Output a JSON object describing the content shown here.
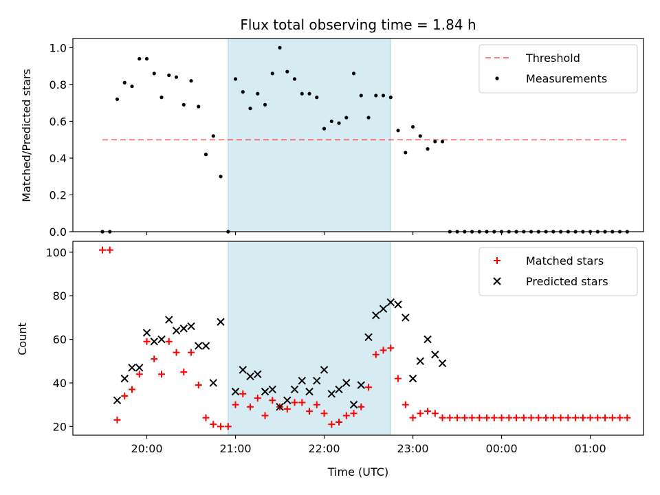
{
  "chart_data": [
    {
      "type": "scatter",
      "title": "Flux total observing time = 1.84 h",
      "xlabel": "",
      "ylabel": "Matched/Predicted stars",
      "ylim": [
        0,
        1.05
      ],
      "yticks": [
        "0.0",
        "0.2",
        "0.4",
        "0.6",
        "0.8",
        "1.0"
      ],
      "xticks": [
        "20:00",
        "21:00",
        "22:00",
        "23:00",
        "00:00",
        "01:00"
      ],
      "highlight_span": {
        "start": "20:55",
        "end": "22:45",
        "color": "#add8e6"
      },
      "threshold": {
        "name": "Threshold",
        "value": 0.5,
        "x_start": "19:30",
        "x_end": "01:25",
        "color": "#ff0000"
      },
      "legend": {
        "placement": "upper right",
        "entries": [
          "Threshold",
          "Measurements"
        ]
      },
      "series": [
        {
          "name": "Measurements",
          "marker": "dot",
          "color": "#000000",
          "points": [
            [
              "19:30",
              0.0
            ],
            [
              "19:35",
              0.0
            ],
            [
              "19:40",
              0.72
            ],
            [
              "19:45",
              0.81
            ],
            [
              "19:50",
              0.79
            ],
            [
              "19:55",
              0.94
            ],
            [
              "20:00",
              0.94
            ],
            [
              "20:05",
              0.86
            ],
            [
              "20:10",
              0.73
            ],
            [
              "20:15",
              0.85
            ],
            [
              "20:20",
              0.84
            ],
            [
              "20:25",
              0.69
            ],
            [
              "20:30",
              0.82
            ],
            [
              "20:35",
              0.68
            ],
            [
              "20:40",
              0.42
            ],
            [
              "20:45",
              0.52
            ],
            [
              "20:50",
              0.3
            ],
            [
              "20:55",
              0.0
            ],
            [
              "21:00",
              0.83
            ],
            [
              "21:05",
              0.76
            ],
            [
              "21:10",
              0.67
            ],
            [
              "21:15",
              0.75
            ],
            [
              "21:20",
              0.69
            ],
            [
              "21:25",
              0.86
            ],
            [
              "21:30",
              1.0
            ],
            [
              "21:35",
              0.87
            ],
            [
              "21:40",
              0.83
            ],
            [
              "21:45",
              0.75
            ],
            [
              "21:50",
              0.75
            ],
            [
              "21:55",
              0.73
            ],
            [
              "22:00",
              0.56
            ],
            [
              "22:05",
              0.6
            ],
            [
              "22:10",
              0.59
            ],
            [
              "22:15",
              0.62
            ],
            [
              "22:20",
              0.86
            ],
            [
              "22:25",
              0.74
            ],
            [
              "22:30",
              0.62
            ],
            [
              "22:35",
              0.74
            ],
            [
              "22:40",
              0.74
            ],
            [
              "22:45",
              0.73
            ],
            [
              "22:50",
              0.55
            ],
            [
              "22:55",
              0.43
            ],
            [
              "23:00",
              0.57
            ],
            [
              "23:05",
              0.52
            ],
            [
              "23:10",
              0.45
            ],
            [
              "23:15",
              0.49
            ],
            [
              "23:20",
              0.49
            ],
            [
              "23:25",
              0.0
            ],
            [
              "23:30",
              0.0
            ],
            [
              "23:35",
              0.0
            ],
            [
              "23:40",
              0.0
            ],
            [
              "23:45",
              0.0
            ],
            [
              "23:50",
              0.0
            ],
            [
              "23:55",
              0.0
            ],
            [
              "00:00",
              0.0
            ],
            [
              "00:05",
              0.0
            ],
            [
              "00:10",
              0.0
            ],
            [
              "00:15",
              0.0
            ],
            [
              "00:20",
              0.0
            ],
            [
              "00:25",
              0.0
            ],
            [
              "00:30",
              0.0
            ],
            [
              "00:35",
              0.0
            ],
            [
              "00:40",
              0.0
            ],
            [
              "00:45",
              0.0
            ],
            [
              "00:50",
              0.0
            ],
            [
              "00:55",
              0.0
            ],
            [
              "01:00",
              0.0
            ],
            [
              "01:05",
              0.0
            ],
            [
              "01:10",
              0.0
            ],
            [
              "01:15",
              0.0
            ],
            [
              "01:20",
              0.0
            ],
            [
              "01:25",
              0.0
            ]
          ]
        }
      ]
    },
    {
      "type": "scatter",
      "title": "",
      "xlabel": "Time (UTC)",
      "ylabel": "Count",
      "ylim": [
        16,
        105
      ],
      "yticks": [
        "20",
        "40",
        "60",
        "80",
        "100"
      ],
      "xticks": [
        "20:00",
        "21:00",
        "22:00",
        "23:00",
        "00:00",
        "01:00"
      ],
      "highlight_span": {
        "start": "20:55",
        "end": "22:45",
        "color": "#add8e6"
      },
      "legend": {
        "placement": "upper right",
        "entries": [
          "Matched stars",
          "Predicted stars"
        ]
      },
      "series": [
        {
          "name": "Matched stars",
          "marker": "plus",
          "color": "#ff0000",
          "points": [
            [
              "19:30",
              101
            ],
            [
              "19:35",
              101
            ],
            [
              "19:40",
              23
            ],
            [
              "19:45",
              34
            ],
            [
              "19:50",
              37
            ],
            [
              "19:55",
              44
            ],
            [
              "20:00",
              59
            ],
            [
              "20:05",
              51
            ],
            [
              "20:10",
              44
            ],
            [
              "20:15",
              59
            ],
            [
              "20:20",
              54
            ],
            [
              "20:25",
              45
            ],
            [
              "20:30",
              54
            ],
            [
              "20:35",
              39
            ],
            [
              "20:40",
              24
            ],
            [
              "20:45",
              21
            ],
            [
              "20:50",
              20
            ],
            [
              "20:55",
              20
            ],
            [
              "21:00",
              30
            ],
            [
              "21:05",
              35
            ],
            [
              "21:10",
              29
            ],
            [
              "21:15",
              33
            ],
            [
              "21:20",
              25
            ],
            [
              "21:25",
              32
            ],
            [
              "21:30",
              29
            ],
            [
              "21:35",
              28
            ],
            [
              "21:40",
              31
            ],
            [
              "21:45",
              31
            ],
            [
              "21:50",
              27
            ],
            [
              "21:55",
              30
            ],
            [
              "22:00",
              26
            ],
            [
              "22:05",
              21
            ],
            [
              "22:10",
              22
            ],
            [
              "22:15",
              25
            ],
            [
              "22:20",
              26
            ],
            [
              "22:25",
              29
            ],
            [
              "22:30",
              38
            ],
            [
              "22:35",
              53
            ],
            [
              "22:40",
              55
            ],
            [
              "22:45",
              56
            ],
            [
              "22:50",
              42
            ],
            [
              "22:55",
              30
            ],
            [
              "23:00",
              24
            ],
            [
              "23:05",
              26
            ],
            [
              "23:10",
              27
            ],
            [
              "23:15",
              26
            ],
            [
              "23:20",
              24
            ],
            [
              "23:25",
              24
            ],
            [
              "23:30",
              24
            ],
            [
              "23:35",
              24
            ],
            [
              "23:40",
              24
            ],
            [
              "23:45",
              24
            ],
            [
              "23:50",
              24
            ],
            [
              "23:55",
              24
            ],
            [
              "00:00",
              24
            ],
            [
              "00:05",
              24
            ],
            [
              "00:10",
              24
            ],
            [
              "00:15",
              24
            ],
            [
              "00:20",
              24
            ],
            [
              "00:25",
              24
            ],
            [
              "00:30",
              24
            ],
            [
              "00:35",
              24
            ],
            [
              "00:40",
              24
            ],
            [
              "00:45",
              24
            ],
            [
              "00:50",
              24
            ],
            [
              "00:55",
              24
            ],
            [
              "01:00",
              24
            ],
            [
              "01:05",
              24
            ],
            [
              "01:10",
              24
            ],
            [
              "01:15",
              24
            ],
            [
              "01:20",
              24
            ],
            [
              "01:25",
              24
            ]
          ]
        },
        {
          "name": "Predicted stars",
          "marker": "x",
          "color": "#000000",
          "points": [
            [
              "19:40",
              32
            ],
            [
              "19:45",
              42
            ],
            [
              "19:50",
              47
            ],
            [
              "19:55",
              47
            ],
            [
              "20:00",
              63
            ],
            [
              "20:05",
              59
            ],
            [
              "20:10",
              60
            ],
            [
              "20:15",
              69
            ],
            [
              "20:20",
              64
            ],
            [
              "20:25",
              65
            ],
            [
              "20:30",
              66
            ],
            [
              "20:35",
              57
            ],
            [
              "20:40",
              57
            ],
            [
              "20:45",
              40
            ],
            [
              "20:50",
              68
            ],
            [
              "21:00",
              36
            ],
            [
              "21:05",
              46
            ],
            [
              "21:10",
              43
            ],
            [
              "21:15",
              44
            ],
            [
              "21:20",
              36
            ],
            [
              "21:25",
              37
            ],
            [
              "21:30",
              29
            ],
            [
              "21:35",
              32
            ],
            [
              "21:40",
              37
            ],
            [
              "21:45",
              41
            ],
            [
              "21:50",
              36
            ],
            [
              "21:55",
              41
            ],
            [
              "22:00",
              46
            ],
            [
              "22:05",
              35
            ],
            [
              "22:10",
              37
            ],
            [
              "22:15",
              40
            ],
            [
              "22:20",
              30
            ],
            [
              "22:25",
              39
            ],
            [
              "22:30",
              61
            ],
            [
              "22:35",
              71
            ],
            [
              "22:40",
              74
            ],
            [
              "22:45",
              77
            ],
            [
              "22:50",
              76
            ],
            [
              "22:55",
              70
            ],
            [
              "23:00",
              42
            ],
            [
              "23:05",
              50
            ],
            [
              "23:10",
              60
            ],
            [
              "23:15",
              53
            ],
            [
              "23:20",
              49
            ]
          ]
        }
      ]
    }
  ]
}
